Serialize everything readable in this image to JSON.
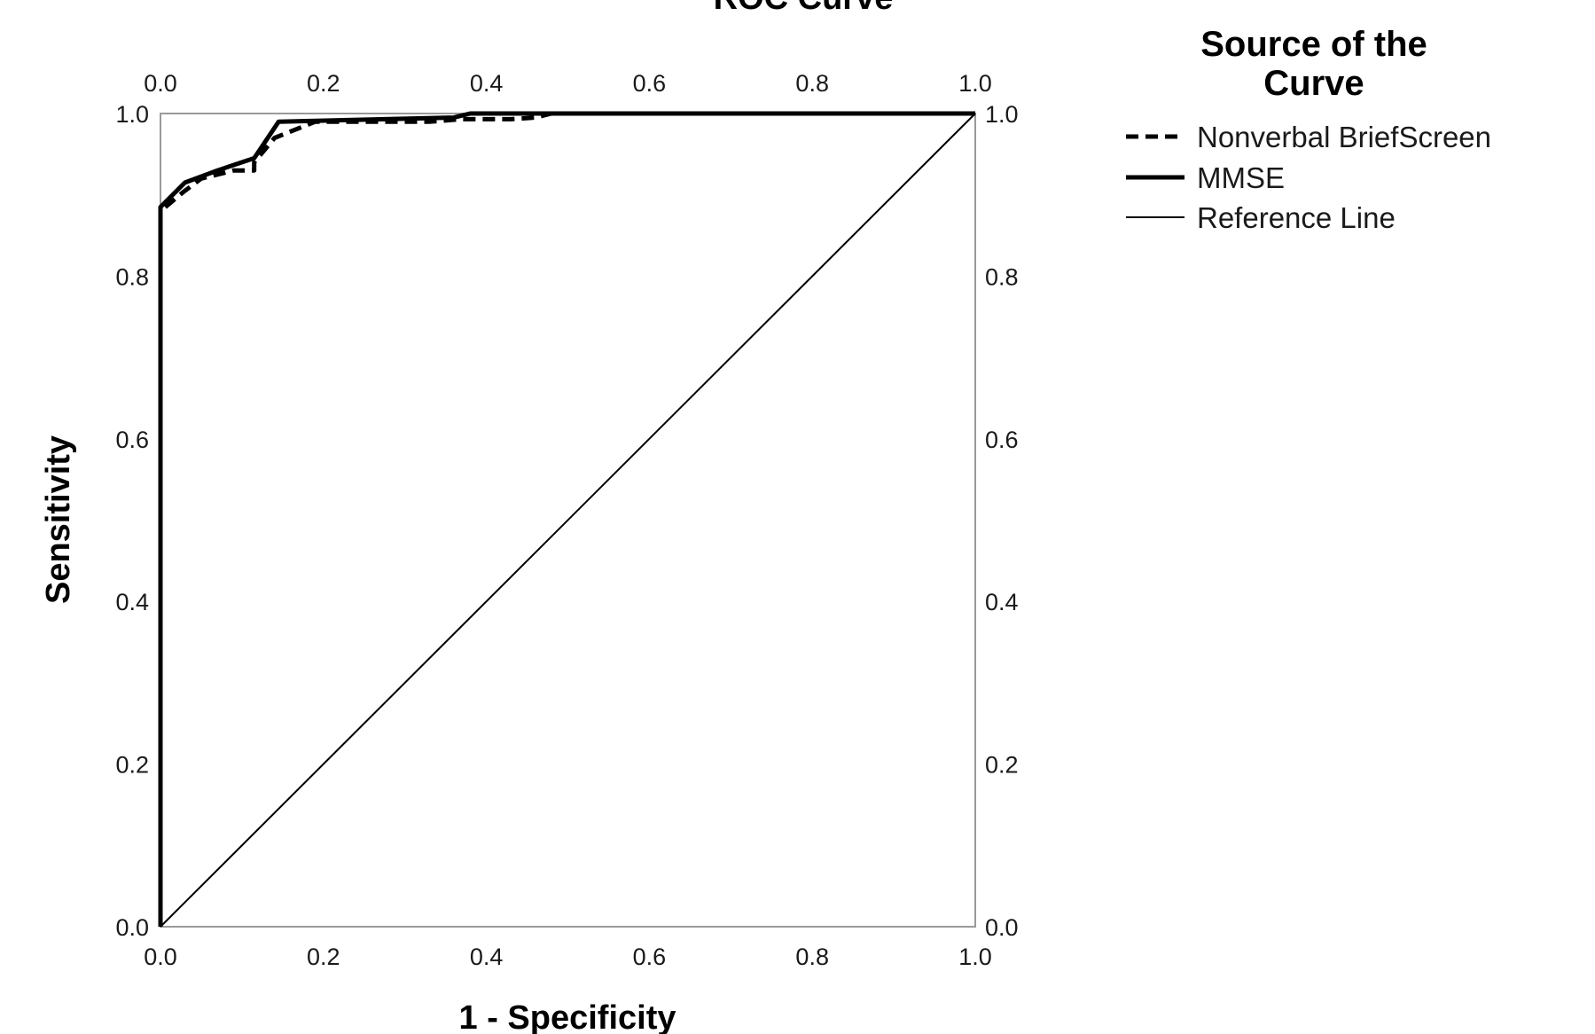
{
  "chart_data": {
    "type": "line",
    "title": "ROC Curve",
    "xlabel": "1 - Specificity",
    "ylabel": "Sensitivity",
    "xlim": [
      0,
      1
    ],
    "ylim": [
      0,
      1
    ],
    "xticks": [
      "0.0",
      "0.2",
      "0.4",
      "0.6",
      "0.8",
      "1.0"
    ],
    "yticks": [
      "0.0",
      "0.2",
      "0.4",
      "0.6",
      "0.8",
      "1.0"
    ],
    "grid": false,
    "legend": {
      "title_line1": "Source of the",
      "title_line2": "Curve",
      "placement": "right"
    },
    "series": [
      {
        "name": "Nonverbal BriefScreen",
        "style": "dashed",
        "color": "#000000",
        "x": [
          0.0,
          0.0,
          0.03,
          0.05,
          0.09,
          0.115,
          0.115,
          0.14,
          0.19,
          0.22,
          0.33,
          0.37,
          0.43,
          0.46,
          0.48,
          1.0
        ],
        "y": [
          0.0,
          0.88,
          0.905,
          0.92,
          0.93,
          0.93,
          0.94,
          0.97,
          0.99,
          0.99,
          0.99,
          0.993,
          0.993,
          0.995,
          1.0,
          1.0
        ]
      },
      {
        "name": "MMSE",
        "style": "solid-thick",
        "color": "#000000",
        "x": [
          0.0,
          0.0,
          0.03,
          0.07,
          0.115,
          0.145,
          0.145,
          0.36,
          0.38,
          1.0
        ],
        "y": [
          0.0,
          0.885,
          0.915,
          0.93,
          0.945,
          0.99,
          0.99,
          0.995,
          1.0,
          1.0
        ]
      },
      {
        "name": "Reference Line",
        "style": "solid-thin",
        "color": "#000000",
        "x": [
          0.0,
          1.0
        ],
        "y": [
          0.0,
          1.0
        ]
      }
    ]
  }
}
